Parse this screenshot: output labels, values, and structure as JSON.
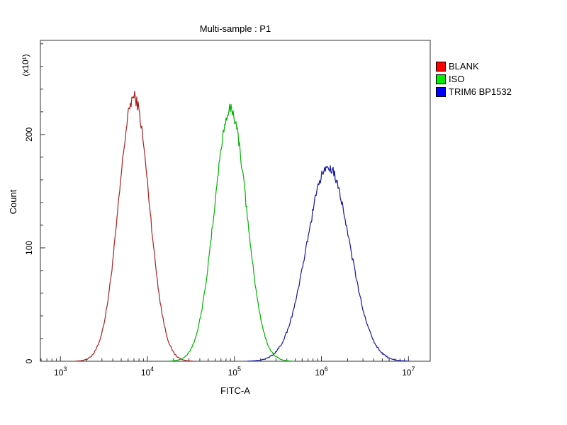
{
  "chart_data": {
    "type": "line",
    "title": "Multi-sample : P1",
    "xlabel": "FITC-A",
    "ylabel": "Count",
    "y_multiplier_label": "(x10¹)",
    "x_scale": "log",
    "x_tick_exponents": [
      3,
      4,
      5,
      6,
      7
    ],
    "xlim_exponents": [
      2.77,
      7.25
    ],
    "ylim": [
      0,
      283
    ],
    "y_ticks": [
      0,
      100,
      200
    ],
    "y_minor_step": 20,
    "grid": false,
    "legend_position": "right",
    "axis_color": "#333333",
    "series": [
      {
        "name": "BLANK",
        "color": "#ff0000",
        "curve_color": "#aa2020",
        "peak_x": 7000,
        "peak_y": 233,
        "sigma_log10": 0.175
      },
      {
        "name": "ISO",
        "color": "#00ee00",
        "curve_color": "#00b400",
        "peak_x": 90000,
        "peak_y": 222,
        "sigma_log10": 0.185
      },
      {
        "name": "TRIM6 BP1532",
        "color": "#0000ff",
        "curve_color": "#1515a8",
        "peak_x": 1200000,
        "peak_y": 172,
        "sigma_log10": 0.245
      }
    ]
  }
}
